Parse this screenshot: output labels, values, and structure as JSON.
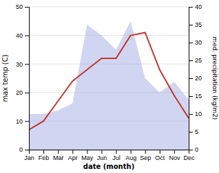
{
  "chart_data": {
    "type": "line",
    "x_label": "date (month)",
    "y_label": "max temp (C)",
    "y2_label": "med. precipitation (kg/m2)",
    "categories": [
      "Jan",
      "Feb",
      "Mar",
      "Apr",
      "May",
      "Jun",
      "Jul",
      "Aug",
      "Sep",
      "Oct",
      "Nov",
      "Dec"
    ],
    "series": [
      {
        "type": "area",
        "color": "#aab4e8",
        "axis": "y2",
        "values": [
          10,
          10,
          11,
          13,
          35,
          32,
          28,
          36,
          20,
          16,
          19,
          14
        ]
      },
      {
        "type": "line",
        "color": "#c0392b",
        "values": [
          7,
          10,
          17,
          24,
          28,
          32,
          32,
          40,
          41,
          28,
          19,
          11
        ]
      }
    ],
    "ylim": [
      0,
      50
    ],
    "yticks": [
      0,
      10,
      20,
      30,
      40,
      50
    ],
    "y2lim": [
      0,
      40
    ],
    "y2ticks": [
      0,
      5,
      10,
      15,
      20,
      25,
      30,
      35,
      40
    ],
    "grid": true
  }
}
